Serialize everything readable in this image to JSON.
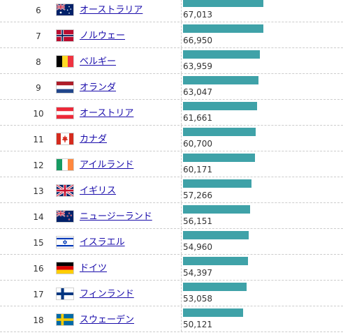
{
  "chart_data": {
    "type": "bar",
    "colors": {
      "bar": "#3fa2a8",
      "link": "#1a0dab"
    },
    "xlim": [
      0,
      67013
    ],
    "rows": [
      {
        "rank": "6",
        "country": "オーストラリア",
        "value": 67013,
        "value_label": "67,013",
        "flag": "australia-flag"
      },
      {
        "rank": "7",
        "country": "ノルウェー",
        "value": 66950,
        "value_label": "66,950",
        "flag": "norway-flag"
      },
      {
        "rank": "8",
        "country": "ベルギー",
        "value": 63959,
        "value_label": "63,959",
        "flag": "belgium-flag"
      },
      {
        "rank": "9",
        "country": "オランダ",
        "value": 63047,
        "value_label": "63,047",
        "flag": "netherlands-flag"
      },
      {
        "rank": "10",
        "country": "オーストリア",
        "value": 61661,
        "value_label": "61,661",
        "flag": "austria-flag"
      },
      {
        "rank": "11",
        "country": "カナダ",
        "value": 60700,
        "value_label": "60,700",
        "flag": "canada-flag"
      },
      {
        "rank": "12",
        "country": "アイルランド",
        "value": 60171,
        "value_label": "60,171",
        "flag": "ireland-flag"
      },
      {
        "rank": "13",
        "country": "イギリス",
        "value": 57266,
        "value_label": "57,266",
        "flag": "uk-flag"
      },
      {
        "rank": "14",
        "country": "ニュージーランド",
        "value": 56151,
        "value_label": "56,151",
        "flag": "new-zealand-flag"
      },
      {
        "rank": "15",
        "country": "イスラエル",
        "value": 54960,
        "value_label": "54,960",
        "flag": "israel-flag"
      },
      {
        "rank": "16",
        "country": "ドイツ",
        "value": 54397,
        "value_label": "54,397",
        "flag": "germany-flag"
      },
      {
        "rank": "17",
        "country": "フィンランド",
        "value": 53058,
        "value_label": "53,058",
        "flag": "finland-flag"
      },
      {
        "rank": "18",
        "country": "スウェーデン",
        "value": 50121,
        "value_label": "50,121",
        "flag": "sweden-flag"
      }
    ]
  }
}
